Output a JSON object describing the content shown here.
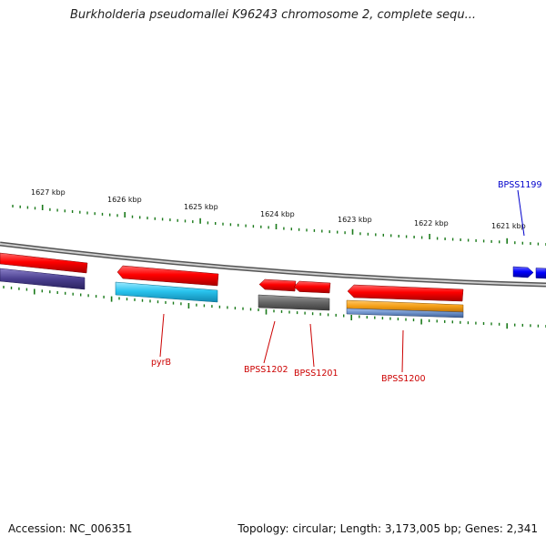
{
  "title": "Burkholderia pseudomallei K96243 chromosome 2, complete sequ...",
  "footer": {
    "accession": "Accession: NC_006351",
    "summary": "Topology: circular; Length: 3,173,005 bp; Genes: 2,341"
  },
  "scale_labels": [
    "1627 kbp",
    "1626 kbp",
    "1625 kbp",
    "1624 kbp",
    "1623 kbp",
    "1622 kbp",
    "1621 kbp"
  ],
  "gene_labels": [
    {
      "name": "pyrB",
      "color": "#cc0000"
    },
    {
      "name": "BPSS1202",
      "color": "#cc0000"
    },
    {
      "name": "BPSS1201",
      "color": "#cc0000"
    },
    {
      "name": "BPSS1200",
      "color": "#cc0000"
    },
    {
      "name": "BPSS1199",
      "color": "#0000cc"
    }
  ],
  "colors": {
    "forward_strand_gene": "#0000ff",
    "reverse_strand_gene": "#ff0000",
    "backbone": "#888888",
    "tick": "#1a7a1a",
    "cds_cyan": "#29c4ee",
    "cds_purple": "#4a3f8f",
    "cds_gray": "#666666",
    "cds_orange": "#f5a017",
    "cds_steel": "#6b8fc7"
  }
}
